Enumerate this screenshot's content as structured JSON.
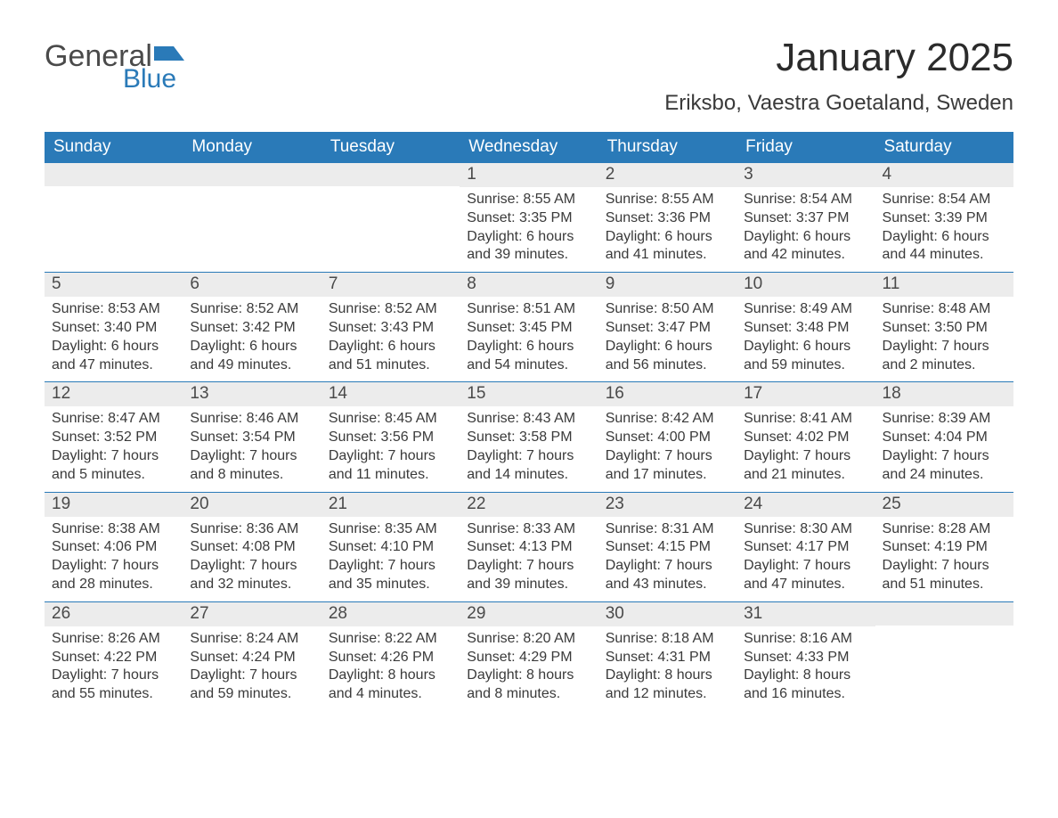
{
  "logo": {
    "text1": "General",
    "text2": "Blue",
    "flag_color": "#2a7ab8"
  },
  "title": "January 2025",
  "location": "Eriksbo, Vaestra Goetaland, Sweden",
  "colors": {
    "header_bg": "#2a7ab8",
    "header_text": "#ffffff",
    "daynum_bg": "#ececec",
    "week_border": "#2a7ab8",
    "body_text": "#3a3a3a"
  },
  "day_headers": [
    "Sunday",
    "Monday",
    "Tuesday",
    "Wednesday",
    "Thursday",
    "Friday",
    "Saturday"
  ],
  "weeks": [
    [
      {
        "day": "",
        "sunrise": "",
        "sunset": "",
        "daylight": ""
      },
      {
        "day": "",
        "sunrise": "",
        "sunset": "",
        "daylight": ""
      },
      {
        "day": "",
        "sunrise": "",
        "sunset": "",
        "daylight": ""
      },
      {
        "day": "1",
        "sunrise": "Sunrise: 8:55 AM",
        "sunset": "Sunset: 3:35 PM",
        "daylight": "Daylight: 6 hours and 39 minutes."
      },
      {
        "day": "2",
        "sunrise": "Sunrise: 8:55 AM",
        "sunset": "Sunset: 3:36 PM",
        "daylight": "Daylight: 6 hours and 41 minutes."
      },
      {
        "day": "3",
        "sunrise": "Sunrise: 8:54 AM",
        "sunset": "Sunset: 3:37 PM",
        "daylight": "Daylight: 6 hours and 42 minutes."
      },
      {
        "day": "4",
        "sunrise": "Sunrise: 8:54 AM",
        "sunset": "Sunset: 3:39 PM",
        "daylight": "Daylight: 6 hours and 44 minutes."
      }
    ],
    [
      {
        "day": "5",
        "sunrise": "Sunrise: 8:53 AM",
        "sunset": "Sunset: 3:40 PM",
        "daylight": "Daylight: 6 hours and 47 minutes."
      },
      {
        "day": "6",
        "sunrise": "Sunrise: 8:52 AM",
        "sunset": "Sunset: 3:42 PM",
        "daylight": "Daylight: 6 hours and 49 minutes."
      },
      {
        "day": "7",
        "sunrise": "Sunrise: 8:52 AM",
        "sunset": "Sunset: 3:43 PM",
        "daylight": "Daylight: 6 hours and 51 minutes."
      },
      {
        "day": "8",
        "sunrise": "Sunrise: 8:51 AM",
        "sunset": "Sunset: 3:45 PM",
        "daylight": "Daylight: 6 hours and 54 minutes."
      },
      {
        "day": "9",
        "sunrise": "Sunrise: 8:50 AM",
        "sunset": "Sunset: 3:47 PM",
        "daylight": "Daylight: 6 hours and 56 minutes."
      },
      {
        "day": "10",
        "sunrise": "Sunrise: 8:49 AM",
        "sunset": "Sunset: 3:48 PM",
        "daylight": "Daylight: 6 hours and 59 minutes."
      },
      {
        "day": "11",
        "sunrise": "Sunrise: 8:48 AM",
        "sunset": "Sunset: 3:50 PM",
        "daylight": "Daylight: 7 hours and 2 minutes."
      }
    ],
    [
      {
        "day": "12",
        "sunrise": "Sunrise: 8:47 AM",
        "sunset": "Sunset: 3:52 PM",
        "daylight": "Daylight: 7 hours and 5 minutes."
      },
      {
        "day": "13",
        "sunrise": "Sunrise: 8:46 AM",
        "sunset": "Sunset: 3:54 PM",
        "daylight": "Daylight: 7 hours and 8 minutes."
      },
      {
        "day": "14",
        "sunrise": "Sunrise: 8:45 AM",
        "sunset": "Sunset: 3:56 PM",
        "daylight": "Daylight: 7 hours and 11 minutes."
      },
      {
        "day": "15",
        "sunrise": "Sunrise: 8:43 AM",
        "sunset": "Sunset: 3:58 PM",
        "daylight": "Daylight: 7 hours and 14 minutes."
      },
      {
        "day": "16",
        "sunrise": "Sunrise: 8:42 AM",
        "sunset": "Sunset: 4:00 PM",
        "daylight": "Daylight: 7 hours and 17 minutes."
      },
      {
        "day": "17",
        "sunrise": "Sunrise: 8:41 AM",
        "sunset": "Sunset: 4:02 PM",
        "daylight": "Daylight: 7 hours and 21 minutes."
      },
      {
        "day": "18",
        "sunrise": "Sunrise: 8:39 AM",
        "sunset": "Sunset: 4:04 PM",
        "daylight": "Daylight: 7 hours and 24 minutes."
      }
    ],
    [
      {
        "day": "19",
        "sunrise": "Sunrise: 8:38 AM",
        "sunset": "Sunset: 4:06 PM",
        "daylight": "Daylight: 7 hours and 28 minutes."
      },
      {
        "day": "20",
        "sunrise": "Sunrise: 8:36 AM",
        "sunset": "Sunset: 4:08 PM",
        "daylight": "Daylight: 7 hours and 32 minutes."
      },
      {
        "day": "21",
        "sunrise": "Sunrise: 8:35 AM",
        "sunset": "Sunset: 4:10 PM",
        "daylight": "Daylight: 7 hours and 35 minutes."
      },
      {
        "day": "22",
        "sunrise": "Sunrise: 8:33 AM",
        "sunset": "Sunset: 4:13 PM",
        "daylight": "Daylight: 7 hours and 39 minutes."
      },
      {
        "day": "23",
        "sunrise": "Sunrise: 8:31 AM",
        "sunset": "Sunset: 4:15 PM",
        "daylight": "Daylight: 7 hours and 43 minutes."
      },
      {
        "day": "24",
        "sunrise": "Sunrise: 8:30 AM",
        "sunset": "Sunset: 4:17 PM",
        "daylight": "Daylight: 7 hours and 47 minutes."
      },
      {
        "day": "25",
        "sunrise": "Sunrise: 8:28 AM",
        "sunset": "Sunset: 4:19 PM",
        "daylight": "Daylight: 7 hours and 51 minutes."
      }
    ],
    [
      {
        "day": "26",
        "sunrise": "Sunrise: 8:26 AM",
        "sunset": "Sunset: 4:22 PM",
        "daylight": "Daylight: 7 hours and 55 minutes."
      },
      {
        "day": "27",
        "sunrise": "Sunrise: 8:24 AM",
        "sunset": "Sunset: 4:24 PM",
        "daylight": "Daylight: 7 hours and 59 minutes."
      },
      {
        "day": "28",
        "sunrise": "Sunrise: 8:22 AM",
        "sunset": "Sunset: 4:26 PM",
        "daylight": "Daylight: 8 hours and 4 minutes."
      },
      {
        "day": "29",
        "sunrise": "Sunrise: 8:20 AM",
        "sunset": "Sunset: 4:29 PM",
        "daylight": "Daylight: 8 hours and 8 minutes."
      },
      {
        "day": "30",
        "sunrise": "Sunrise: 8:18 AM",
        "sunset": "Sunset: 4:31 PM",
        "daylight": "Daylight: 8 hours and 12 minutes."
      },
      {
        "day": "31",
        "sunrise": "Sunrise: 8:16 AM",
        "sunset": "Sunset: 4:33 PM",
        "daylight": "Daylight: 8 hours and 16 minutes."
      },
      {
        "day": "",
        "sunrise": "",
        "sunset": "",
        "daylight": ""
      }
    ]
  ]
}
